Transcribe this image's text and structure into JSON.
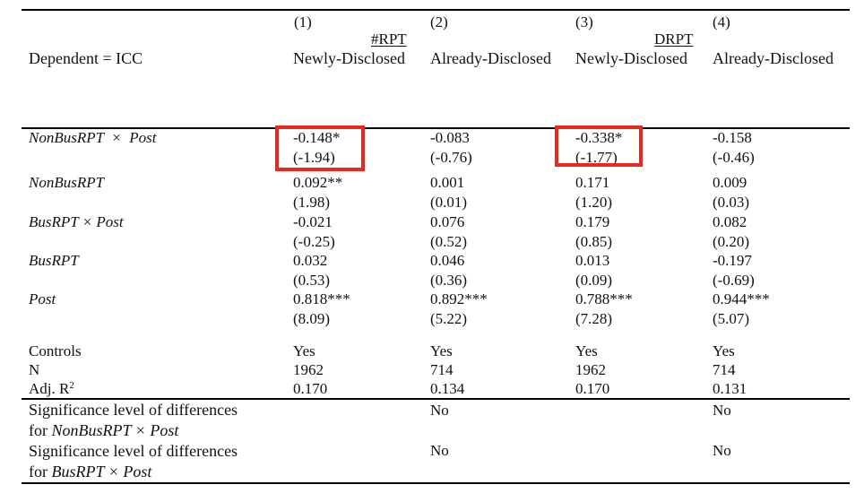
{
  "header": {
    "dependent": "Dependent = ICC",
    "col_nums": [
      "(1)",
      "(2)",
      "(3)",
      "(4)"
    ],
    "group1": "#RPT",
    "group2": "DRPT",
    "col_labels": [
      "Newly-Disclosed",
      "Already-Disclosed",
      "Newly-Disclosed",
      "Already-Disclosed"
    ]
  },
  "rows": [
    {
      "label": "NonBusRPT  ×  Post",
      "coef": [
        "-0.148*",
        "-0.083",
        "-0.338*",
        "-0.158"
      ],
      "tstat": [
        "(-1.94)",
        "(-0.76)",
        "(-1.77)",
        "(-0.46)"
      ]
    },
    {
      "label": "NonBusRPT",
      "coef": [
        "0.092**",
        "0.001",
        "0.171",
        "0.009"
      ],
      "tstat": [
        "(1.98)",
        "(0.01)",
        "(1.20)",
        "(0.03)"
      ]
    },
    {
      "label": "BusRPT × Post",
      "coef": [
        "-0.021",
        "0.076",
        "0.179",
        "0.082"
      ],
      "tstat": [
        "(-0.25)",
        "(0.52)",
        "(0.85)",
        "(0.20)"
      ]
    },
    {
      "label": "BusRPT",
      "coef": [
        "0.032",
        "0.046",
        "0.013",
        "-0.197"
      ],
      "tstat": [
        "(0.53)",
        "(0.36)",
        "(0.09)",
        "(-0.69)"
      ]
    },
    {
      "label": "Post",
      "coef": [
        "0.818***",
        "0.892***",
        "0.788***",
        "0.944***"
      ],
      "tstat": [
        "(8.09)",
        "(5.22)",
        "(7.28)",
        "(5.07)"
      ]
    }
  ],
  "stats": [
    {
      "label": "Controls",
      "values": [
        "Yes",
        "Yes",
        "Yes",
        "Yes"
      ]
    },
    {
      "label": "N",
      "values": [
        "1962",
        "714",
        "1962",
        "714"
      ]
    },
    {
      "label_main": "Adj. R",
      "label_sup": "2",
      "values": [
        "0.170",
        "0.134",
        "0.170",
        "0.131"
      ]
    }
  ],
  "significance": [
    {
      "line1": "Significance level of differences",
      "line2_prefix": "for ",
      "line2_var": "NonBusRPT × Post",
      "col2": "No",
      "col4": "No"
    },
    {
      "line1": "Significance level of differences",
      "line2_prefix": "for ",
      "line2_var": "BusRPT × Post",
      "col2": "No",
      "col4": "No"
    }
  ],
  "highlight_color": "#e8281f"
}
